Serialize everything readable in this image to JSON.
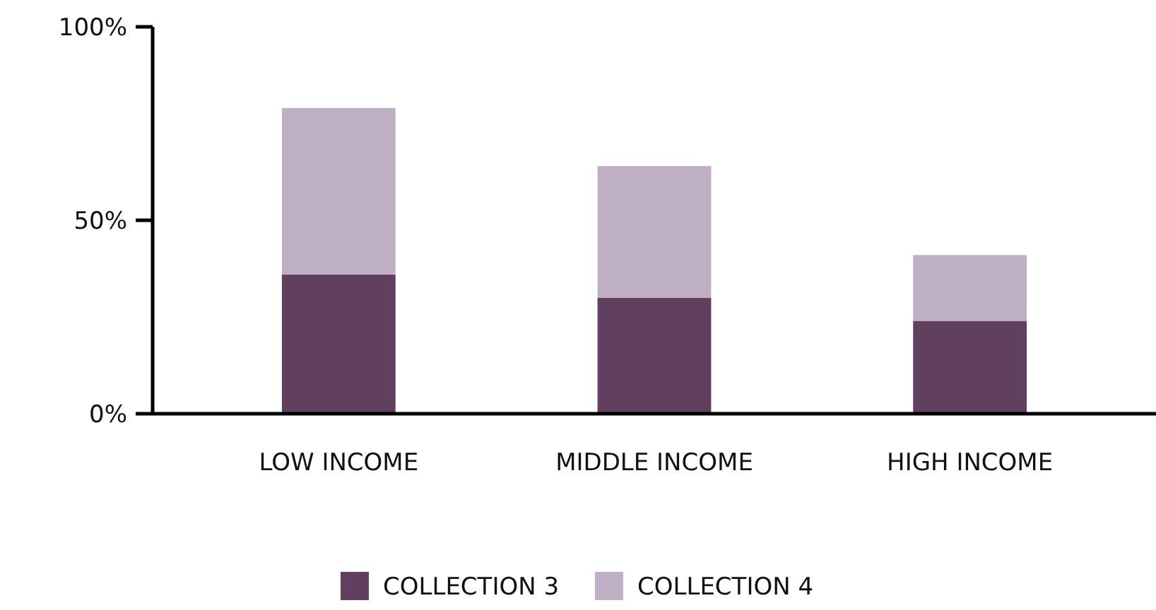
{
  "chart_data": {
    "type": "bar",
    "stacked": true,
    "categories": [
      "LOW INCOME",
      "MIDDLE INCOME",
      "HIGH INCOME"
    ],
    "series": [
      {
        "name": "COLLECTION 3",
        "color": "#613f5f",
        "values": [
          36,
          30,
          24
        ]
      },
      {
        "name": "COLLECTION 4",
        "color": "#bfafc3",
        "values": [
          43,
          34,
          17
        ]
      }
    ],
    "ylim": [
      0,
      100
    ],
    "yticks": [
      {
        "value": 0,
        "label": "0%"
      },
      {
        "value": 50,
        "label": "50%"
      },
      {
        "value": 100,
        "label": "100%"
      }
    ],
    "grid": false,
    "legend": "bottom"
  }
}
